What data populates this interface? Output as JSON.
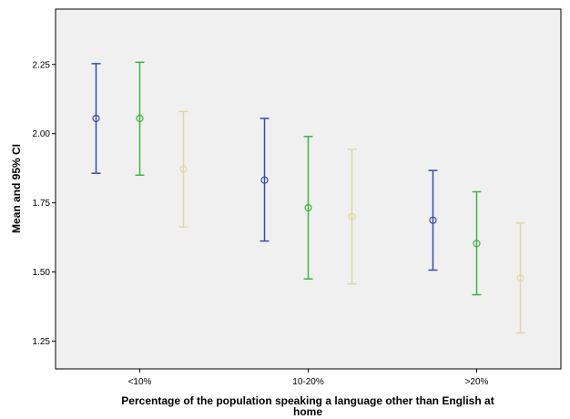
{
  "chart_data": {
    "type": "errorbar",
    "xlabel_lines": [
      "Percentage of the population speaking a language other than English at",
      "home"
    ],
    "ylabel": "Mean and 95% CI",
    "categories": [
      "<10%",
      "10-20%",
      ">20%"
    ],
    "ylim": [
      1.15,
      2.45
    ],
    "yticks": [
      1.25,
      1.5,
      1.75,
      2.0,
      2.25
    ],
    "ytick_labels": [
      "1.25",
      "1.50",
      "1.75",
      "2.00",
      "2.25"
    ],
    "grid": false,
    "plot_background": "#f0f0f0",
    "series": [
      {
        "color": "#3a4bb0",
        "mean": [
          2.055,
          1.832,
          1.687
        ],
        "lower": [
          1.857,
          1.612,
          1.507
        ],
        "upper": [
          2.253,
          2.055,
          1.867
        ]
      },
      {
        "color": "#3cb53c",
        "mean": [
          2.055,
          1.732,
          1.603
        ],
        "lower": [
          1.85,
          1.475,
          1.418
        ],
        "upper": [
          2.258,
          1.99,
          1.79
        ]
      },
      {
        "color": "#dcd9a0",
        "mean": [
          1.872,
          1.7,
          1.478
        ],
        "lower": [
          1.663,
          1.457,
          1.28
        ],
        "upper": [
          2.08,
          1.943,
          1.677
        ]
      }
    ]
  }
}
